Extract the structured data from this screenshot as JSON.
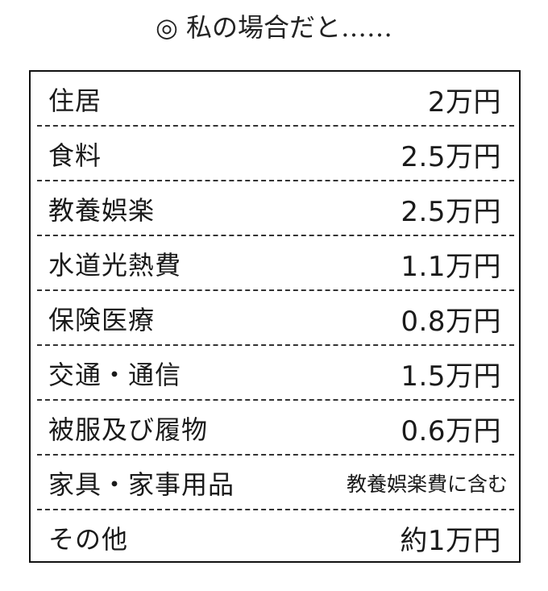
{
  "title": "◎ 私の場合だと……",
  "rows": [
    {
      "label": "住居",
      "value": "2万円"
    },
    {
      "label": "食料",
      "value": "2.5万円"
    },
    {
      "label": "教養娯楽",
      "value": "2.5万円"
    },
    {
      "label": "水道光熱費",
      "value": "1.1万円"
    },
    {
      "label": "保険医療",
      "value": "0.8万円"
    },
    {
      "label": "交通・通信",
      "value": "1.5万円"
    },
    {
      "label": "被服及び履物",
      "value": "0.6万円"
    },
    {
      "label": "家具・家事用品",
      "value": "教養娯楽費に含む"
    },
    {
      "label": "その他",
      "value": "約1万円"
    }
  ]
}
